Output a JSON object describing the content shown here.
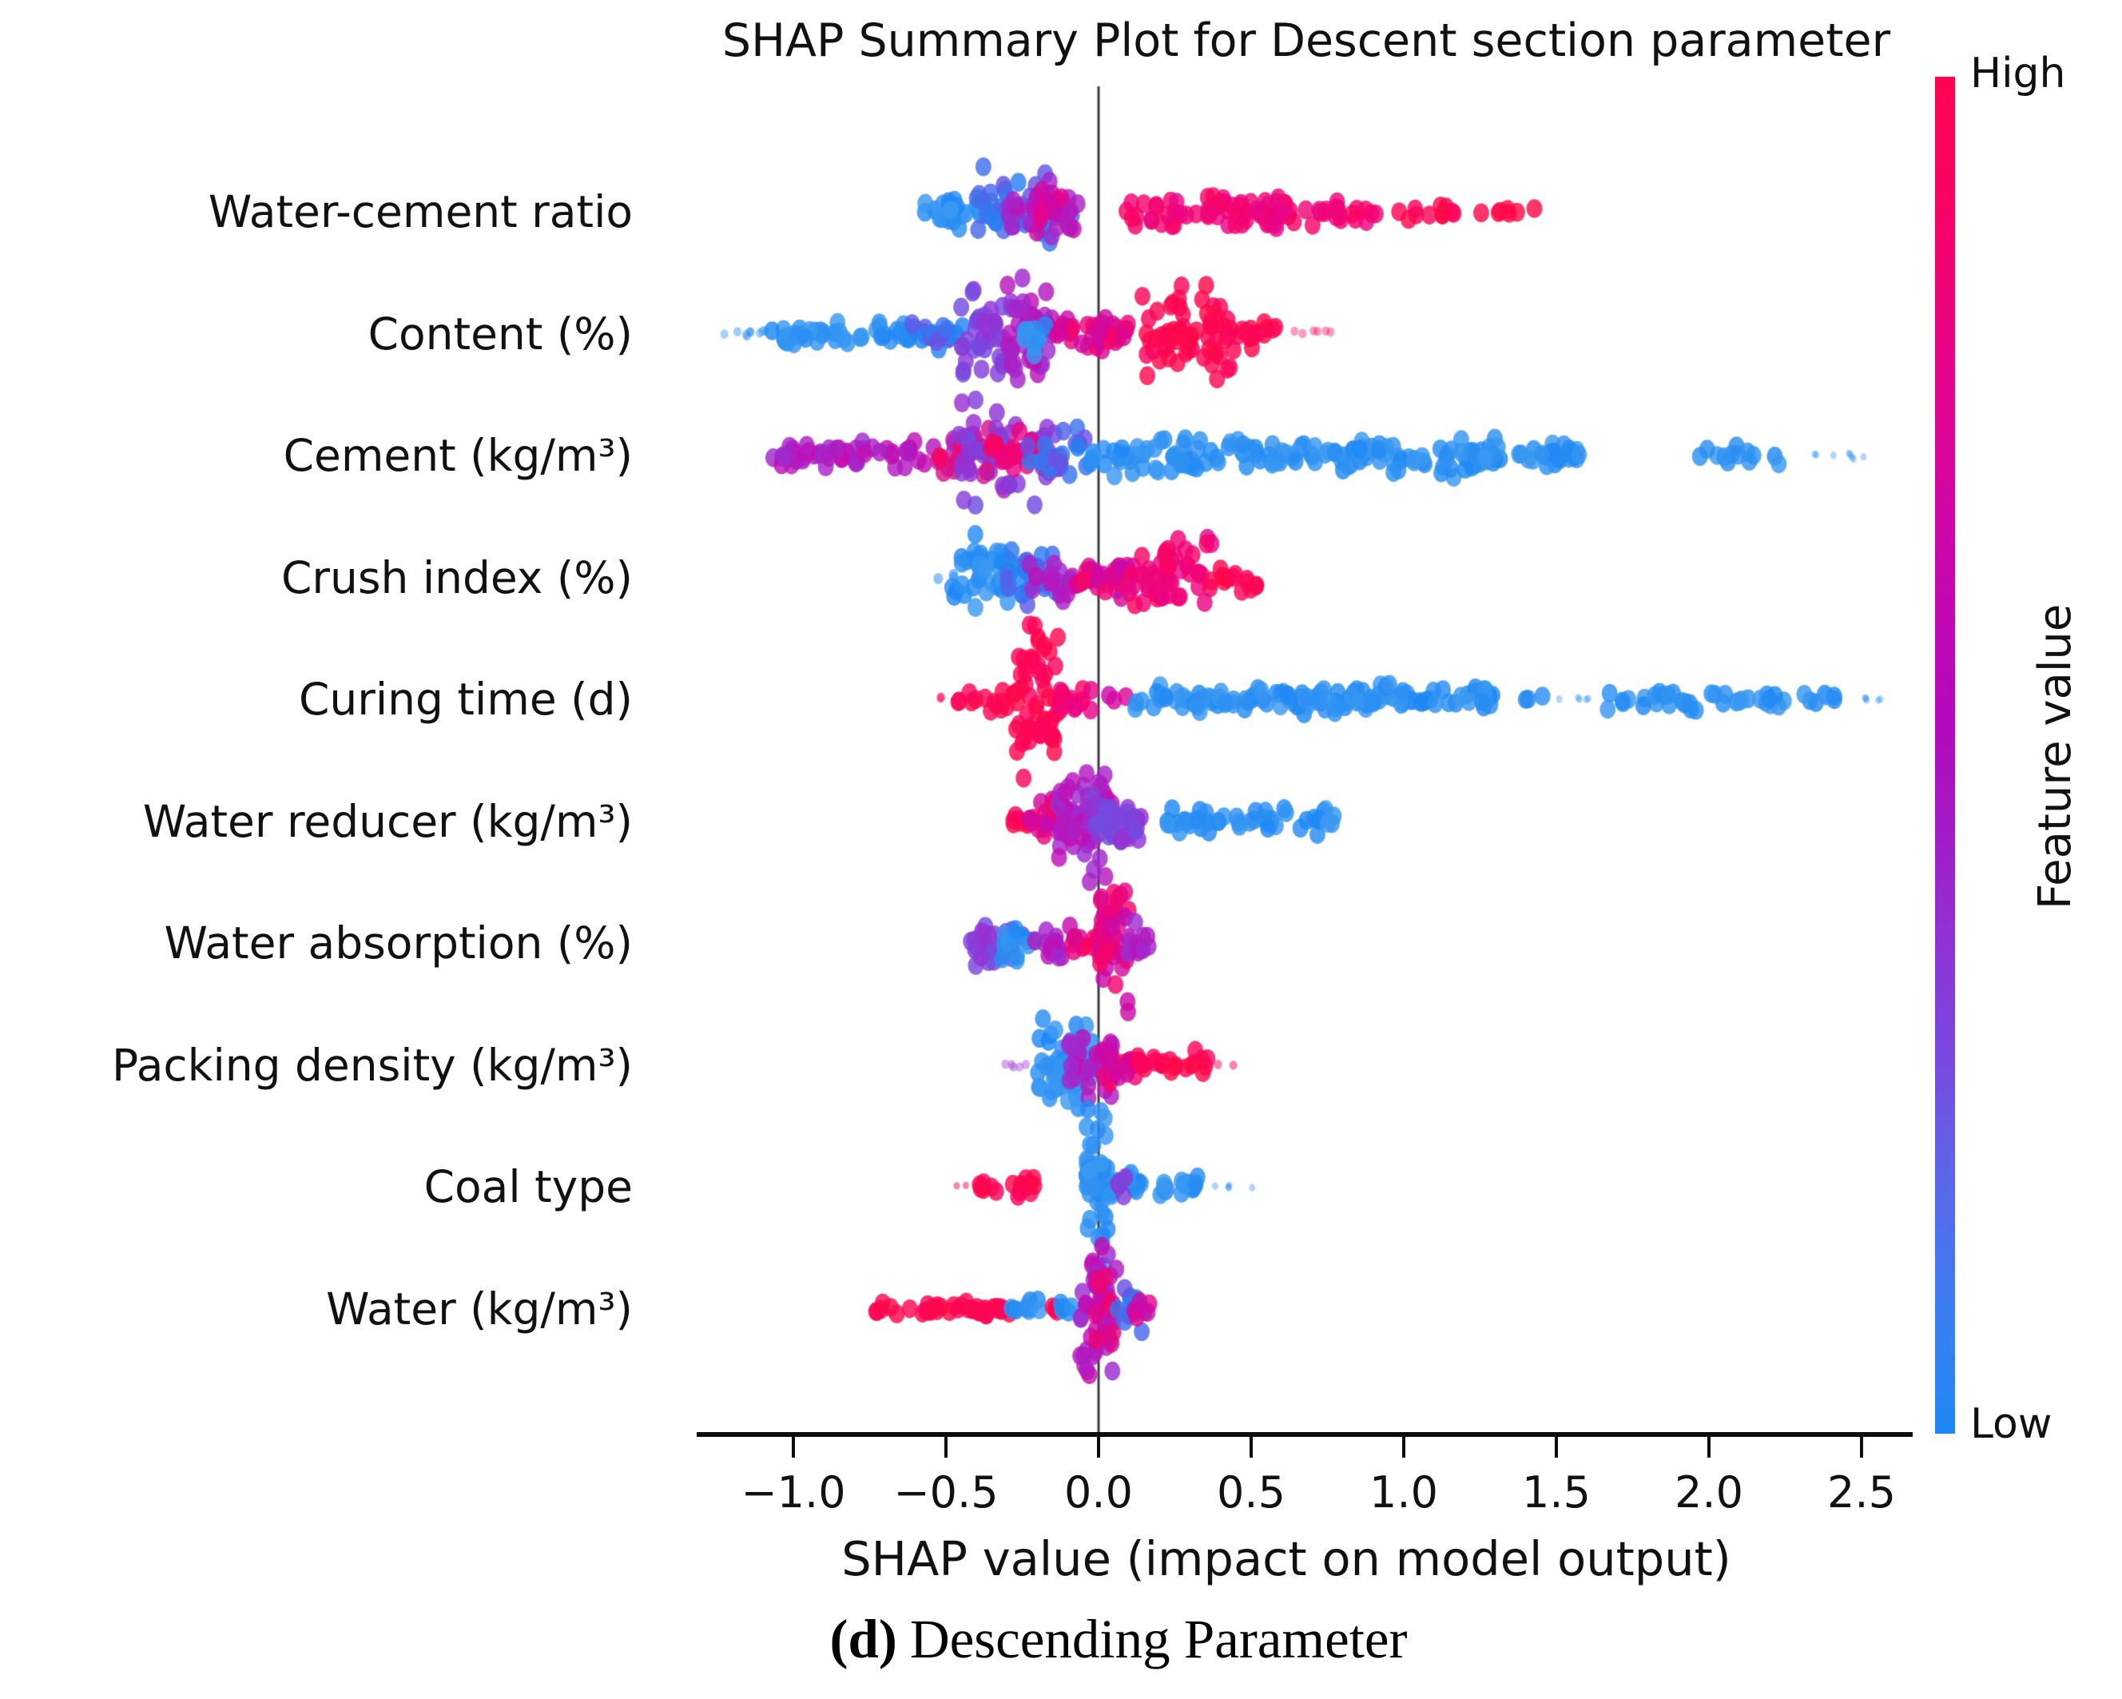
{
  "chart_data": {
    "type": "scatter",
    "subtype": "shap-beeswarm-summary",
    "title": "SHAP Summary Plot for Descent section parameter",
    "xlabel": "SHAP value (impact on model output)",
    "xlim": [
      -1.31,
      2.66
    ],
    "grid": false,
    "zero_line": true,
    "xticks": [
      {
        "value": -1.0,
        "label": "−1.0"
      },
      {
        "value": -0.5,
        "label": "−0.5"
      },
      {
        "value": 0.0,
        "label": "0.0"
      },
      {
        "value": 0.5,
        "label": "0.5"
      },
      {
        "value": 1.0,
        "label": "1.0"
      },
      {
        "value": 1.5,
        "label": "1.5"
      },
      {
        "value": 2.0,
        "label": "2.0"
      },
      {
        "value": 2.5,
        "label": "2.5"
      }
    ],
    "segment_fields": [
      "shap_from",
      "shap_to",
      "vertical_spread_px",
      "n_points",
      "color_a",
      "color_b",
      "radius_px",
      "alpha"
    ],
    "features": [
      {
        "label": "Water-cement ratio",
        "segments": [
          [
            -0.57,
            -0.33,
            26,
            26,
            "#1e88f5",
            "#3d9af0"
          ],
          [
            -0.4,
            -0.07,
            58,
            50,
            "#1e88f5",
            "#6e4fe2"
          ],
          [
            -0.3,
            -0.04,
            50,
            32,
            "#9a2ed2",
            "#c50bb0"
          ],
          [
            -0.22,
            -0.12,
            40,
            10,
            "#e6058d",
            "#c50bb0"
          ],
          [
            0.08,
            0.6,
            30,
            48,
            "#e6058d",
            "#fb0460"
          ],
          [
            0.35,
            0.95,
            25,
            40,
            "#fb0460",
            "#e6058d"
          ],
          [
            0.95,
            1.32,
            13,
            15,
            "#fb0460",
            "#ff0a47"
          ],
          [
            1.34,
            1.43,
            9,
            4,
            "#ff0a47",
            "#ff0a47"
          ]
        ]
      },
      {
        "label": "Content (%)",
        "segments": [
          [
            -1.33,
            -1.08,
            7,
            9,
            "#1e88f5",
            "#3d9af0",
            5,
            0.45
          ],
          [
            -1.08,
            -0.62,
            20,
            42,
            "#1e88f5",
            "#3d9af0"
          ],
          [
            -0.62,
            -0.44,
            26,
            20,
            "#1e88f5",
            "#6e4fe2"
          ],
          [
            -0.45,
            -0.28,
            86,
            38,
            "#9a2ed2",
            "#6e4fe2"
          ],
          [
            -0.31,
            -0.14,
            90,
            42,
            "#9a2ed2",
            "#c50bb0"
          ],
          [
            -0.26,
            -0.17,
            40,
            9,
            "#1e88f5",
            "#3d9af0"
          ],
          [
            -0.14,
            0.12,
            26,
            38,
            "#c50bb0",
            "#fb0460"
          ],
          [
            0.13,
            0.45,
            86,
            65,
            "#fb0460",
            "#ff0a47"
          ],
          [
            0.45,
            0.58,
            20,
            15,
            "#fb0460",
            "#ff0a47"
          ],
          [
            0.6,
            0.76,
            7,
            6,
            "#fb0460",
            "#fb0460",
            5,
            0.4
          ]
        ]
      },
      {
        "label": "Cement (kg/m³)",
        "segments": [
          [
            -1.07,
            -0.74,
            20,
            38,
            "#9a2ed2",
            "#c50bb0"
          ],
          [
            -0.77,
            -0.52,
            24,
            16,
            "#c50bb0",
            "#9a2ed2"
          ],
          [
            -0.53,
            -0.28,
            55,
            40,
            "#9a2ed2",
            "#fb0460"
          ],
          [
            -0.46,
            -0.12,
            92,
            50,
            "#9a2ed2",
            "#6e4fe2"
          ],
          [
            -0.36,
            -0.16,
            60,
            18,
            "#fb0460",
            "#e6058d"
          ],
          [
            -0.26,
            -0.04,
            45,
            22,
            "#1e88f5",
            "#6e4fe2"
          ],
          [
            -0.04,
            1.32,
            30,
            150,
            "#1e88f5",
            "#3d9af0"
          ],
          [
            1.32,
            1.63,
            22,
            22,
            "#1e88f5",
            "#3d9af0"
          ],
          [
            1.96,
            2.27,
            15,
            13,
            "#1e88f5",
            "#3d9af0"
          ],
          [
            2.3,
            2.52,
            6,
            8,
            "#1e88f5",
            "#1e88f5",
            4,
            0.35
          ]
        ]
      },
      {
        "label": "Crush index (%)",
        "segments": [
          [
            -0.54,
            -0.47,
            7,
            3,
            "#1e88f5",
            "#1e88f5",
            6,
            0.5
          ],
          [
            -0.48,
            -0.27,
            56,
            42,
            "#1e88f5",
            "#3d9af0"
          ],
          [
            -0.3,
            -0.13,
            48,
            28,
            "#1e88f5",
            "#6e4fe2"
          ],
          [
            -0.23,
            -0.07,
            35,
            18,
            "#9a2ed2",
            "#c50bb0"
          ],
          [
            -0.08,
            0.12,
            30,
            32,
            "#c50bb0",
            "#fb0460"
          ],
          [
            0.1,
            0.37,
            70,
            52,
            "#fb0460",
            "#e6058d"
          ],
          [
            0.36,
            0.53,
            23,
            14,
            "#fb0460",
            "#ff0a47"
          ]
        ]
      },
      {
        "label": "Curing time (d)",
        "segments": [
          [
            -0.53,
            -0.47,
            6,
            2,
            "#fb0460",
            "#fb0460",
            5,
            0.5
          ],
          [
            -0.47,
            -0.28,
            20,
            15,
            "#fb0460",
            "#ff0a47"
          ],
          [
            -0.27,
            -0.12,
            122,
            58,
            "#fb0460",
            "#ff0a47"
          ],
          [
            -0.13,
            -0.02,
            17,
            18,
            "#fb0460",
            "#e6058d"
          ],
          [
            0.03,
            0.09,
            10,
            3,
            "#e6058d",
            "#c50bb0"
          ],
          [
            0.12,
            1.3,
            23,
            125,
            "#1e88f5",
            "#3d9af0"
          ],
          [
            1.4,
            1.46,
            8,
            3,
            "#1e88f5",
            "#3d9af0"
          ],
          [
            1.5,
            1.61,
            5,
            5,
            "#1e88f5",
            "#1e88f5",
            4,
            0.35
          ],
          [
            1.64,
            1.96,
            18,
            20,
            "#1e88f5",
            "#3d9af0"
          ],
          [
            2.0,
            2.13,
            13,
            8,
            "#1e88f5",
            "#3d9af0"
          ],
          [
            2.15,
            2.43,
            15,
            15,
            "#1e88f5",
            "#3d9af0"
          ],
          [
            2.46,
            2.57,
            5,
            5,
            "#1e88f5",
            "#1e88f5",
            4,
            0.35
          ]
        ]
      },
      {
        "label": "Water reducer (kg/m³)",
        "segments": [
          [
            -0.29,
            -0.21,
            16,
            9,
            "#fb0460",
            "#ff0a47"
          ],
          [
            -0.23,
            -0.1,
            40,
            22,
            "#fb0460",
            "#c50bb0"
          ],
          [
            -0.14,
            0.05,
            92,
            65,
            "#c50bb0",
            "#9a2ed2"
          ],
          [
            -0.02,
            0.14,
            60,
            38,
            "#6e4fe2",
            "#9a2ed2"
          ],
          [
            0.22,
            0.78,
            25,
            50,
            "#1e88f5",
            "#3d9af0"
          ]
        ]
      },
      {
        "label": "Water absorption (%)",
        "segments": [
          [
            -0.42,
            -0.23,
            42,
            28,
            "#9a2ed2",
            "#6e4fe2"
          ],
          [
            -0.32,
            -0.21,
            36,
            14,
            "#1e88f5",
            "#3d9af0"
          ],
          [
            -0.21,
            -0.09,
            26,
            16,
            "#9a2ed2",
            "#c50bb0"
          ],
          [
            -0.1,
            0.02,
            30,
            18,
            "#c50bb0",
            "#fb0460"
          ],
          [
            0.0,
            0.1,
            112,
            42,
            "#c50bb0",
            "#fb0460"
          ],
          [
            0.09,
            0.17,
            28,
            11,
            "#c50bb0",
            "#9a2ed2"
          ]
        ]
      },
      {
        "label": "Packing density (kg/m³)",
        "segments": [
          [
            -0.31,
            -0.21,
            8,
            5,
            "#9a2ed2",
            "#9a2ed2",
            5,
            0.4
          ],
          [
            -0.2,
            -0.01,
            74,
            55,
            "#1e88f5",
            "#3d9af0"
          ],
          [
            -0.1,
            0.05,
            55,
            32,
            "#c50bb0",
            "#9a2ed2"
          ],
          [
            0.0,
            0.13,
            38,
            22,
            "#fb0460",
            "#c50bb0"
          ],
          [
            0.12,
            0.36,
            20,
            22,
            "#fb0460",
            "#ff0a47"
          ],
          [
            0.38,
            0.45,
            6,
            2,
            "#fb0460",
            "#fb0460",
            5,
            0.5
          ]
        ]
      },
      {
        "label": "Coal type",
        "segments": [
          [
            -0.47,
            -0.42,
            5,
            2,
            "#fb0460",
            "#fb0460",
            4,
            0.5
          ],
          [
            -0.39,
            -0.33,
            13,
            6,
            "#fb0460",
            "#ff0a47"
          ],
          [
            -0.29,
            -0.2,
            17,
            11,
            "#fb0460",
            "#ff0a47"
          ],
          [
            -0.04,
            0.03,
            132,
            55,
            "#1e88f5",
            "#3d9af0"
          ],
          [
            0.03,
            0.14,
            22,
            18,
            "#1e88f5",
            "#3d9af0"
          ],
          [
            0.06,
            0.11,
            16,
            6,
            "#9a2ed2",
            "#6e4fe2"
          ],
          [
            0.17,
            0.24,
            14,
            7,
            "#1e88f5",
            "#3d9af0"
          ],
          [
            0.27,
            0.34,
            15,
            11,
            "#1e88f5",
            "#3d9af0"
          ],
          [
            0.38,
            0.51,
            5,
            5,
            "#1e88f5",
            "#1e88f5",
            4,
            0.35
          ]
        ]
      },
      {
        "label": "Water (kg/m³)",
        "segments": [
          [
            -0.73,
            -0.65,
            13,
            6,
            "#fb0460",
            "#ff0a47"
          ],
          [
            -0.62,
            -0.37,
            15,
            24,
            "#fb0460",
            "#ff0a47"
          ],
          [
            -0.37,
            -0.28,
            12,
            9,
            "#fb0460",
            "#ff0a47"
          ],
          [
            -0.29,
            -0.16,
            13,
            11,
            "#1e88f5",
            "#3d9af0"
          ],
          [
            -0.17,
            -0.13,
            10,
            4,
            "#fb0460",
            "#ff0a47"
          ],
          [
            -0.13,
            -0.07,
            12,
            5,
            "#1e88f5",
            "#3d9af0"
          ],
          [
            -0.06,
            0.06,
            128,
            50,
            "#9a2ed2",
            "#c50bb0"
          ],
          [
            -0.02,
            0.05,
            60,
            14,
            "#fb0460",
            "#c50bb0"
          ],
          [
            0.06,
            0.15,
            32,
            14,
            "#1e88f5",
            "#6e4fe2"
          ],
          [
            0.1,
            0.17,
            18,
            6,
            "#c50bb0",
            "#e6058d"
          ]
        ]
      }
    ],
    "colorbar": {
      "title": "Feature value",
      "high_label": "High",
      "low_label": "Low",
      "top_color": "#ff0452",
      "bottom_color": "#1e88f5"
    }
  },
  "caption": {
    "prefix": "(d)",
    "text": "Descending Parameter"
  }
}
